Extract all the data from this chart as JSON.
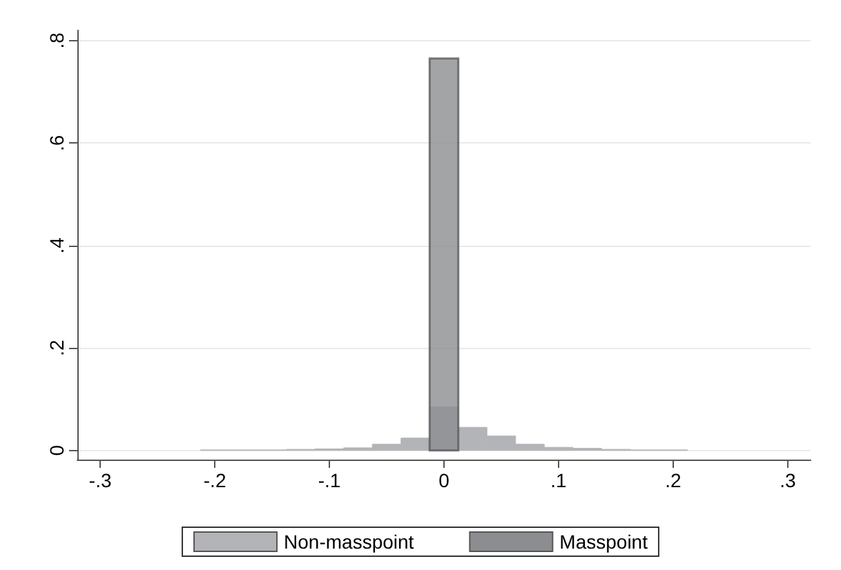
{
  "chart_data": {
    "type": "histogram",
    "bins": [
      -0.2125,
      -0.1875,
      -0.1625,
      -0.1375,
      -0.1125,
      -0.0875,
      -0.0625,
      -0.0375,
      -0.0125,
      0.0125,
      0.0375,
      0.0625,
      0.0875,
      0.1125,
      0.1375,
      0.1625,
      0.1875,
      0.2125
    ],
    "series": [
      {
        "name": "Non-masspoint",
        "color": "#b3b4b7",
        "values": [
          0.001,
          0.001,
          0.001,
          0.002,
          0.003,
          0.005,
          0.012,
          0.024,
          0.085,
          0.045,
          0.028,
          0.012,
          0.006,
          0.004,
          0.002,
          0.001,
          0.001
        ]
      },
      {
        "name": "Masspoint",
        "color": "#8c8d90",
        "values": [
          null,
          null,
          null,
          null,
          null,
          null,
          null,
          null,
          0.765,
          null,
          null,
          null,
          null,
          null,
          null,
          null,
          null
        ]
      }
    ],
    "xlim": [
      -0.32,
      0.32
    ],
    "xticks": [
      {
        "value": -0.3,
        "label": "-.3"
      },
      {
        "value": -0.2,
        "label": "-.2"
      },
      {
        "value": -0.1,
        "label": "-.1"
      },
      0,
      {
        "value": 0.1,
        "label": ".1"
      },
      {
        "value": 0.2,
        "label": ".2"
      },
      {
        "value": 0.3,
        "label": ".3"
      }
    ],
    "ylim": [
      -0.018,
      0.82
    ],
    "yticks": [
      0,
      {
        "value": 0.2,
        "label": ".2"
      },
      {
        "value": 0.4,
        "label": ".4"
      },
      {
        "value": 0.6,
        "label": ".6"
      },
      {
        "value": 0.8,
        "label": ".8"
      }
    ],
    "grid": "y",
    "legend": "bottom"
  }
}
